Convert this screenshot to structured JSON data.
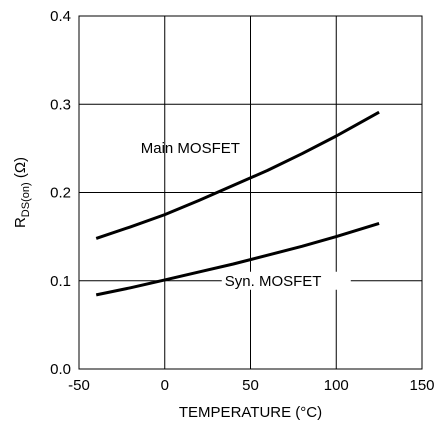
{
  "chart_data": {
    "type": "line",
    "title": "",
    "xlabel": "TEMPERATURE (°C)",
    "ylabel": {
      "main": "R",
      "subscript": "DS(on)",
      "unit": " (Ω)"
    },
    "xlim": [
      -50,
      150
    ],
    "ylim": [
      0.0,
      0.4
    ],
    "x_ticks": [
      -50,
      0,
      50,
      100,
      150
    ],
    "x_tick_labels": [
      "-50",
      "0",
      "50",
      "100",
      "150"
    ],
    "y_ticks": [
      0.0,
      0.1,
      0.2,
      0.3,
      0.4
    ],
    "y_tick_labels": [
      "0.0",
      "0.1",
      "0.2",
      "0.3",
      "0.4"
    ],
    "grid": true,
    "legend": "none",
    "series": [
      {
        "name": "Main MOSFET",
        "color": "#000000",
        "x": [
          -40,
          -20,
          0,
          20,
          40,
          60,
          80,
          100,
          125
        ],
        "y": [
          0.148,
          0.161,
          0.175,
          0.191,
          0.208,
          0.225,
          0.244,
          0.264,
          0.291
        ]
      },
      {
        "name": "Syn. MOSFET",
        "color": "#000000",
        "x": [
          -40,
          -20,
          0,
          20,
          40,
          60,
          80,
          100,
          125
        ],
        "y": [
          0.084,
          0.092,
          0.101,
          0.11,
          0.119,
          0.129,
          0.139,
          0.15,
          0.165
        ]
      }
    ]
  }
}
